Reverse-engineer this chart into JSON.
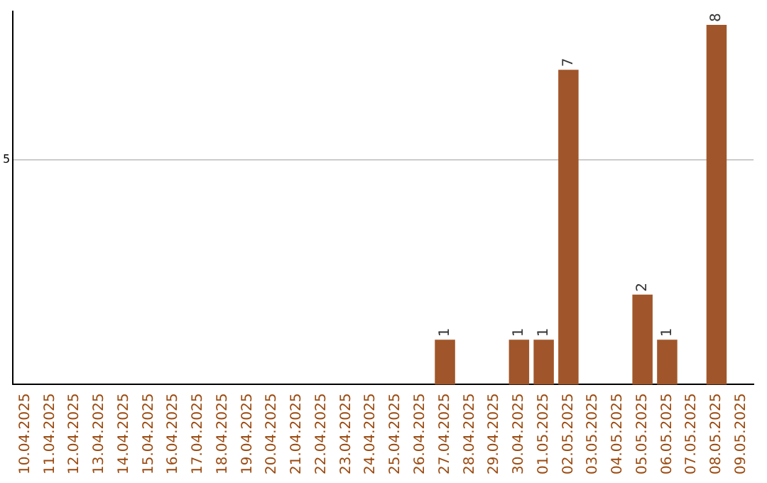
{
  "chart_data": {
    "type": "bar",
    "categories": [
      "10.04.2025",
      "11.04.2025",
      "12.04.2025",
      "13.04.2025",
      "14.04.2025",
      "15.04.2025",
      "16.04.2025",
      "17.04.2025",
      "18.04.2025",
      "19.04.2025",
      "20.04.2025",
      "21.04.2025",
      "22.04.2025",
      "23.04.2025",
      "24.04.2025",
      "25.04.2025",
      "26.04.2025",
      "27.04.2025",
      "28.04.2025",
      "29.04.2025",
      "30.04.2025",
      "01.05.2025",
      "02.05.2025",
      "03.05.2025",
      "04.05.2025",
      "05.05.2025",
      "06.05.2025",
      "07.05.2025",
      "08.05.2025",
      "09.05.2025"
    ],
    "values": [
      null,
      null,
      null,
      null,
      null,
      null,
      null,
      null,
      null,
      null,
      null,
      null,
      null,
      null,
      null,
      null,
      null,
      1,
      null,
      null,
      1,
      1,
      7,
      null,
      null,
      2,
      1,
      null,
      8,
      null
    ],
    "data_labels": true,
    "color": "#a0562a",
    "ylim": [
      0,
      8.3
    ],
    "yticks": [
      5
    ],
    "grid": "y",
    "legend": false
  }
}
